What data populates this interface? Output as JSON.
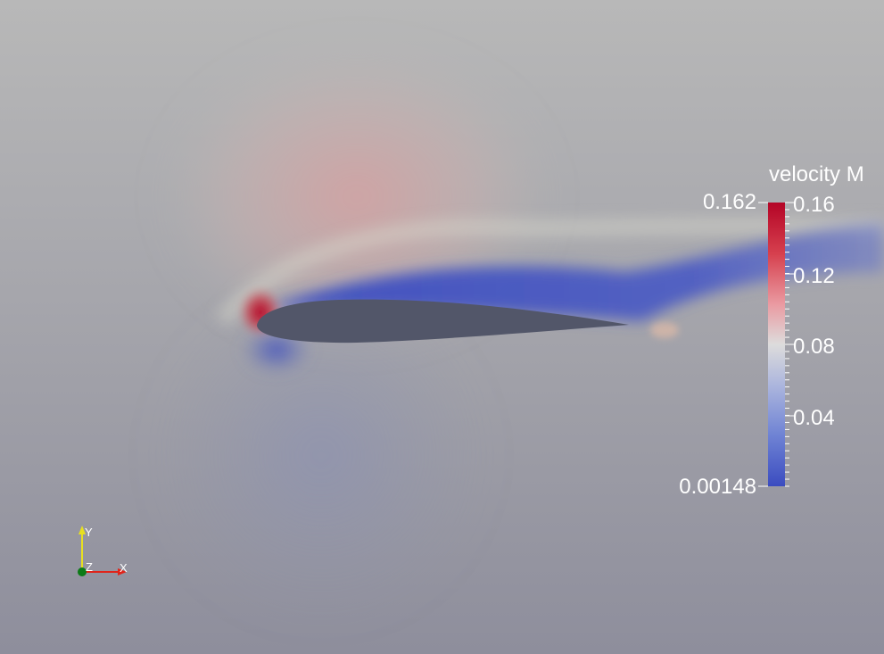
{
  "colorbar": {
    "title": "velocity M",
    "range_max": "0.162",
    "range_min": "0.00148",
    "labels": [
      "0.16",
      "0.12",
      "0.08",
      "0.04"
    ],
    "colors": {
      "high": "#b40426",
      "mid": "#dddcdc",
      "low": "#3b4cc0"
    }
  },
  "axes_widget": {
    "x_label": "X",
    "y_label": "Y",
    "z_label": "Z",
    "colors": {
      "x": "#e0241a",
      "y": "#e8e020",
      "z": "#0c7a16"
    }
  },
  "scene": {
    "background_color": "#8e8e9c",
    "airfoil_color": "#525669"
  }
}
